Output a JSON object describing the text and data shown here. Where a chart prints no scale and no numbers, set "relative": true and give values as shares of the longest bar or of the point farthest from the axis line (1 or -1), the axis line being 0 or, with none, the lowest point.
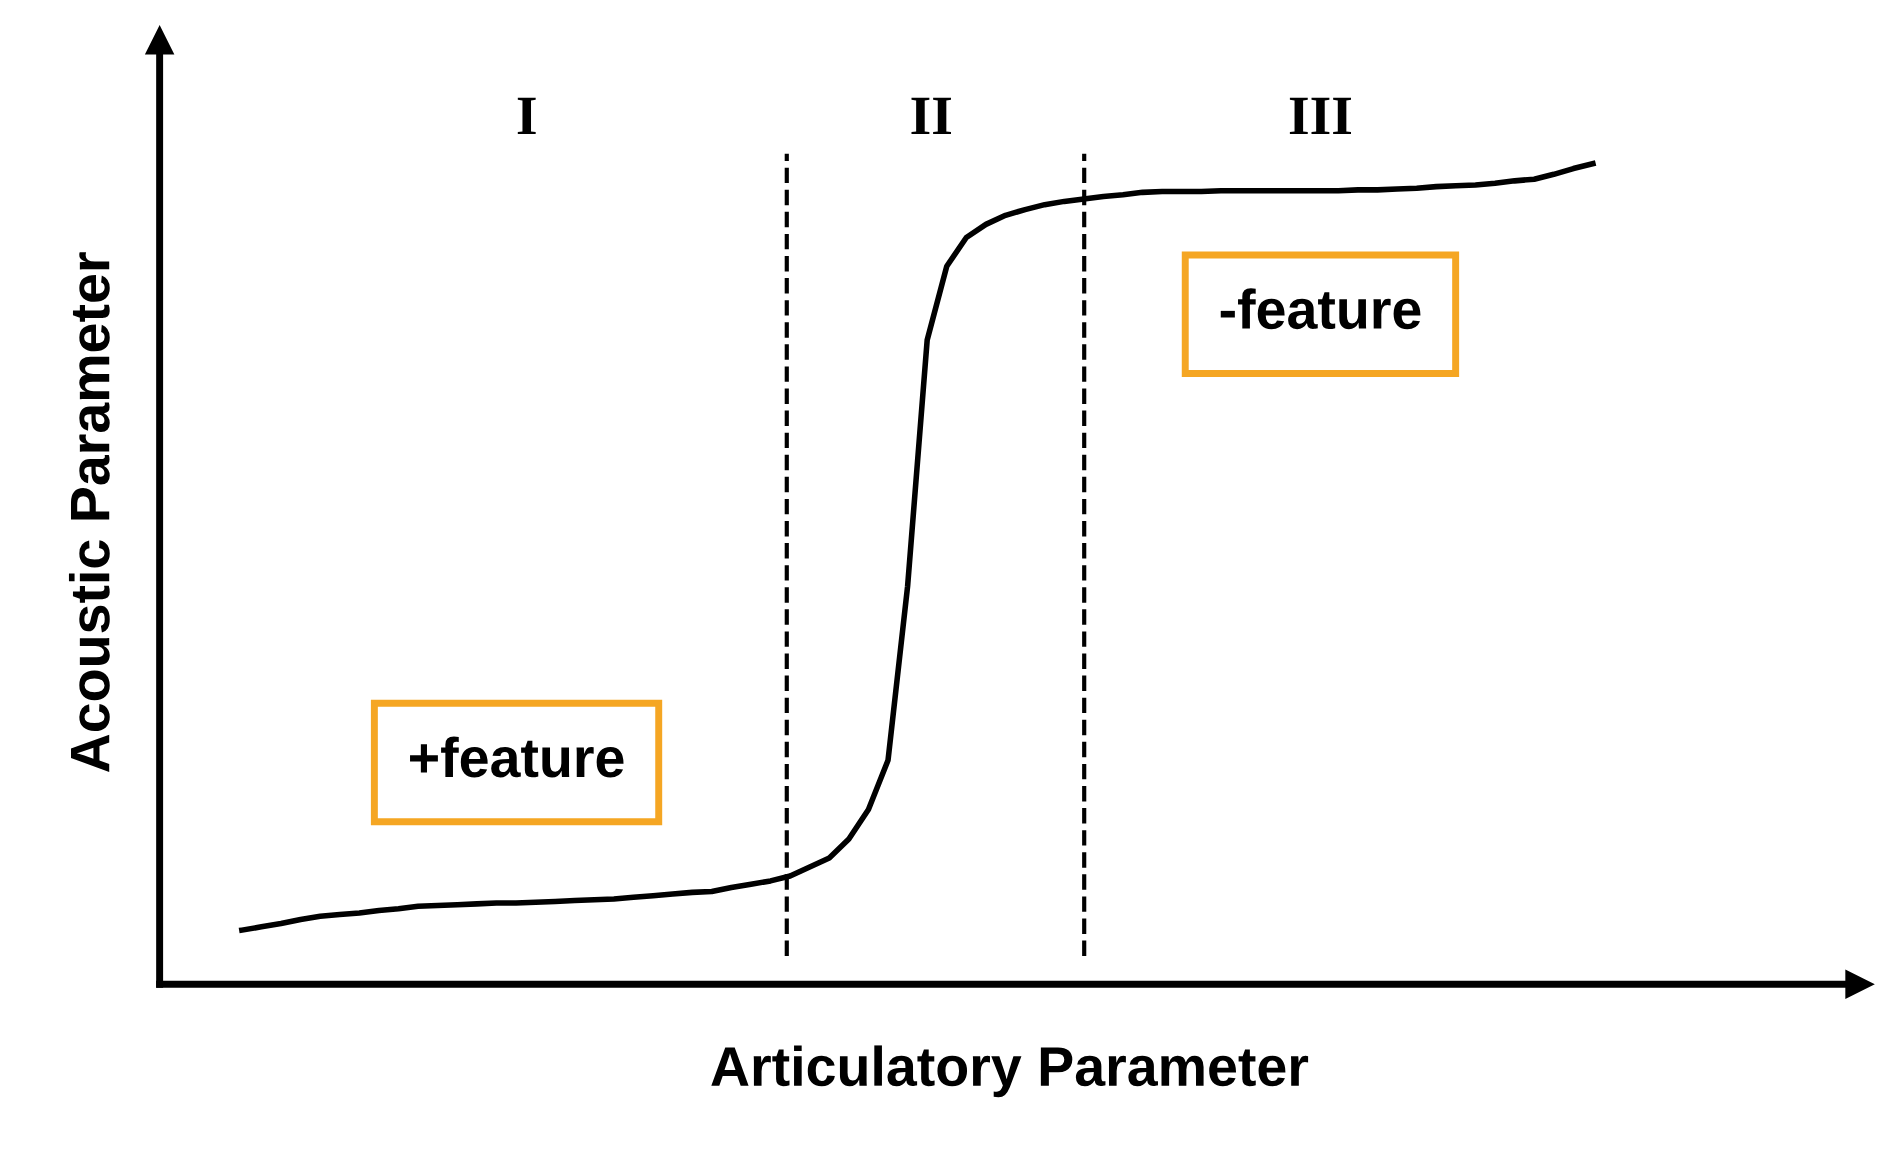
{
  "chart_data": {
    "type": "line",
    "relative": true,
    "xlabel": "Articulatory Parameter",
    "ylabel": "Acoustic Parameter",
    "categories": [
      null,
      null,
      null,
      null,
      null,
      null,
      null,
      null,
      null,
      null,
      null,
      null,
      null,
      null,
      null,
      null,
      null,
      null,
      null,
      null,
      null,
      null,
      null,
      null,
      null,
      null,
      null,
      null,
      null,
      null,
      null,
      null,
      null,
      null,
      null,
      null,
      null,
      null,
      null,
      null,
      null,
      null,
      null,
      null,
      null,
      null,
      null,
      null,
      null,
      null,
      null,
      null,
      null,
      null,
      null,
      null,
      null,
      null,
      null,
      null,
      null,
      null,
      null,
      null,
      null,
      null,
      null,
      null,
      null,
      null
    ],
    "series": [
      {
        "color": "#000000",
        "values": [
          0.066,
          0.07,
          0.074,
          0.079,
          0.083,
          0.085,
          0.087,
          0.09,
          0.092,
          0.095,
          0.096,
          0.097,
          0.098,
          0.099,
          0.099,
          0.1,
          0.101,
          0.102,
          0.103,
          0.104,
          0.106,
          0.108,
          0.11,
          0.112,
          0.113,
          0.118,
          0.122,
          0.126,
          0.132,
          0.143,
          0.154,
          0.177,
          0.213,
          0.273,
          0.485,
          0.785,
          0.875,
          0.91,
          0.926,
          0.937,
          0.944,
          0.95,
          0.954,
          0.957,
          0.96,
          0.962,
          0.965,
          0.966,
          0.966,
          0.966,
          0.967,
          0.967,
          0.967,
          0.967,
          0.967,
          0.967,
          0.967,
          0.968,
          0.968,
          0.969,
          0.97,
          0.972,
          0.973,
          0.974,
          0.976,
          0.979,
          0.981,
          0.987,
          0.994,
          1
        ]
      }
    ],
    "annotations": [
      "I",
      "II",
      "III",
      "-feature",
      "+feature"
    ],
    "line_style": "solid",
    "marker": "none"
  }
}
